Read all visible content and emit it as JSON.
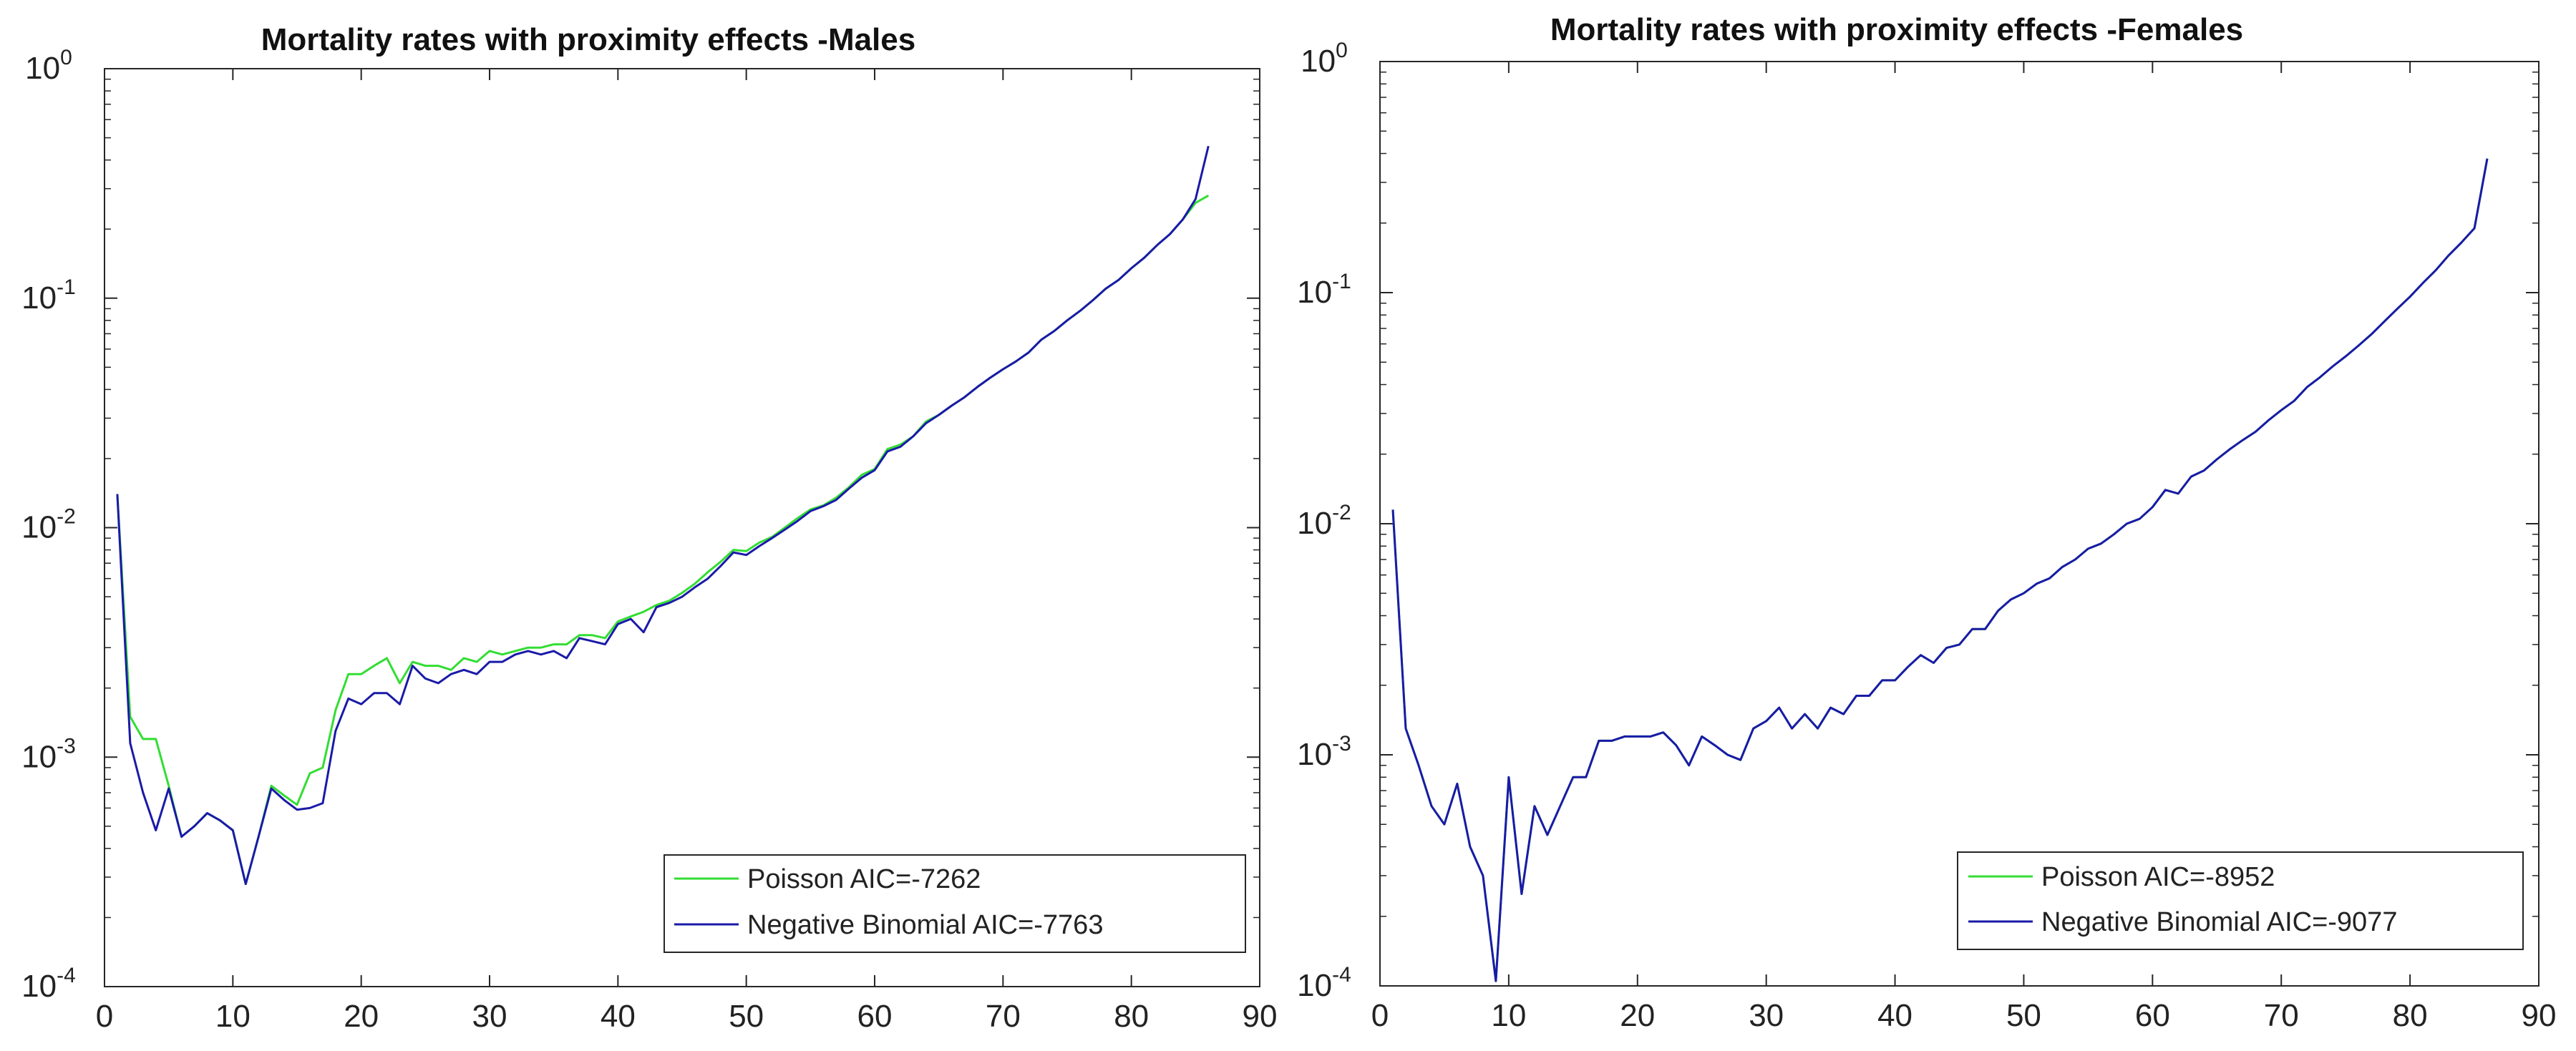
{
  "chart_data": [
    {
      "type": "line",
      "title": "Mortality rates with proximity effects -Males",
      "xlabel": "",
      "ylabel": "",
      "xlim": [
        0,
        90
      ],
      "ylim": [
        0.0001,
        1
      ],
      "yscale": "log",
      "x_ticks": [
        0,
        10,
        20,
        30,
        40,
        50,
        60,
        70,
        80,
        90
      ],
      "y_ticks": [
        {
          "base": "10",
          "exp": "-4",
          "value": 0.0001
        },
        {
          "base": "10",
          "exp": "-3",
          "value": 0.001
        },
        {
          "base": "10",
          "exp": "-2",
          "value": 0.01
        },
        {
          "base": "10",
          "exp": "-1",
          "value": 0.1
        },
        {
          "base": "10",
          "exp": "0",
          "value": 1
        }
      ],
      "legend_position": "bottom-right",
      "series": [
        {
          "name": "Poisson AIC=-7262",
          "color": "#33dd33",
          "x": [
            1,
            2,
            3,
            4,
            5,
            6,
            7,
            8,
            9,
            10,
            11,
            12,
            13,
            14,
            15,
            16,
            17,
            18,
            19,
            20,
            21,
            22,
            23,
            24,
            25,
            26,
            27,
            28,
            29,
            30,
            31,
            32,
            33,
            34,
            35,
            36,
            37,
            38,
            39,
            40,
            41,
            42,
            43,
            44,
            45,
            46,
            47,
            48,
            49,
            50,
            51,
            52,
            53,
            54,
            55,
            56,
            57,
            58,
            59,
            60,
            61,
            62,
            63,
            64,
            65,
            66,
            67,
            68,
            69,
            70,
            71,
            72,
            73,
            74,
            75,
            76,
            77,
            78,
            79,
            80,
            81,
            82,
            83,
            84,
            85,
            86
          ],
          "values": [
            0.014,
            0.0015,
            0.0012,
            0.0012,
            0.00075,
            0.00045,
            0.0005,
            0.00057,
            0.00053,
            0.00048,
            0.00028,
            0.00045,
            0.00075,
            0.00068,
            0.00062,
            0.00085,
            0.0009,
            0.0016,
            0.0023,
            0.0023,
            0.0025,
            0.0027,
            0.0021,
            0.0026,
            0.0025,
            0.0025,
            0.0024,
            0.0027,
            0.0026,
            0.0029,
            0.0028,
            0.0029,
            0.003,
            0.003,
            0.0031,
            0.0031,
            0.0034,
            0.0034,
            0.0033,
            0.0039,
            0.0041,
            0.0043,
            0.0046,
            0.0048,
            0.0052,
            0.0057,
            0.0064,
            0.0071,
            0.008,
            0.0079,
            0.0086,
            0.0091,
            0.01,
            0.011,
            0.012,
            0.0125,
            0.0135,
            0.015,
            0.017,
            0.018,
            0.022,
            0.023,
            0.025,
            0.029,
            0.031,
            0.034,
            0.037,
            0.041,
            0.045,
            0.049,
            0.053,
            0.058,
            0.066,
            0.072,
            0.08,
            0.088,
            0.098,
            0.11,
            0.12,
            0.135,
            0.15,
            0.17,
            0.19,
            0.22,
            0.26,
            0.28
          ]
        },
        {
          "name": "Negative Binomial AIC=-7763",
          "color": "#1a1aa8",
          "x": [
            1,
            2,
            3,
            4,
            5,
            6,
            7,
            8,
            9,
            10,
            11,
            12,
            13,
            14,
            15,
            16,
            17,
            18,
            19,
            20,
            21,
            22,
            23,
            24,
            25,
            26,
            27,
            28,
            29,
            30,
            31,
            32,
            33,
            34,
            35,
            36,
            37,
            38,
            39,
            40,
            41,
            42,
            43,
            44,
            45,
            46,
            47,
            48,
            49,
            50,
            51,
            52,
            53,
            54,
            55,
            56,
            57,
            58,
            59,
            60,
            61,
            62,
            63,
            64,
            65,
            66,
            67,
            68,
            69,
            70,
            71,
            72,
            73,
            74,
            75,
            76,
            77,
            78,
            79,
            80,
            81,
            82,
            83,
            84,
            85,
            86
          ],
          "values": [
            0.014,
            0.00115,
            0.0007,
            0.00048,
            0.00073,
            0.00045,
            0.0005,
            0.00057,
            0.00053,
            0.00048,
            0.00028,
            0.00045,
            0.00073,
            0.00065,
            0.00059,
            0.0006,
            0.00063,
            0.0013,
            0.0018,
            0.0017,
            0.0019,
            0.0019,
            0.0017,
            0.0025,
            0.0022,
            0.0021,
            0.0023,
            0.0024,
            0.0023,
            0.0026,
            0.0026,
            0.0028,
            0.0029,
            0.0028,
            0.0029,
            0.0027,
            0.0033,
            0.0032,
            0.0031,
            0.0038,
            0.004,
            0.0035,
            0.0045,
            0.0047,
            0.005,
            0.0055,
            0.006,
            0.0068,
            0.0078,
            0.0076,
            0.0083,
            0.009,
            0.0098,
            0.0107,
            0.0118,
            0.0124,
            0.0132,
            0.0148,
            0.0165,
            0.0178,
            0.0215,
            0.0225,
            0.025,
            0.0285,
            0.031,
            0.034,
            0.037,
            0.041,
            0.045,
            0.049,
            0.053,
            0.058,
            0.066,
            0.072,
            0.08,
            0.088,
            0.098,
            0.11,
            0.12,
            0.135,
            0.15,
            0.17,
            0.19,
            0.22,
            0.27,
            0.46
          ]
        }
      ]
    },
    {
      "type": "line",
      "title": "Mortality rates with proximity effects -Females",
      "xlabel": "",
      "ylabel": "",
      "xlim": [
        0,
        90
      ],
      "ylim": [
        0.0001,
        1
      ],
      "yscale": "log",
      "x_ticks": [
        0,
        10,
        20,
        30,
        40,
        50,
        60,
        70,
        80,
        90
      ],
      "y_ticks": [
        {
          "base": "10",
          "exp": "-4",
          "value": 0.0001
        },
        {
          "base": "10",
          "exp": "-3",
          "value": 0.001
        },
        {
          "base": "10",
          "exp": "-2",
          "value": 0.01
        },
        {
          "base": "10",
          "exp": "-1",
          "value": 0.1
        },
        {
          "base": "10",
          "exp": "0",
          "value": 1
        }
      ],
      "legend_position": "bottom-right",
      "series": [
        {
          "name": "Poisson AIC=-8952",
          "color": "#33dd33",
          "x": [
            1,
            2,
            3,
            4,
            5,
            6,
            7,
            8,
            9,
            10,
            11,
            12,
            13,
            14,
            15,
            16,
            17,
            18,
            19,
            20,
            21,
            22,
            23,
            24,
            25,
            26,
            27,
            28,
            29,
            30,
            31,
            32,
            33,
            34,
            35,
            36,
            37,
            38,
            39,
            40,
            41,
            42,
            43,
            44,
            45,
            46,
            47,
            48,
            49,
            50,
            51,
            52,
            53,
            54,
            55,
            56,
            57,
            58,
            59,
            60,
            61,
            62,
            63,
            64,
            65,
            66,
            67,
            68,
            69,
            70,
            71,
            72,
            73,
            74,
            75,
            76,
            77,
            78,
            79,
            80,
            81,
            82,
            83,
            84,
            85,
            86
          ],
          "values": [
            0.0115,
            0.0013,
            0.0009,
            0.0006,
            0.0005,
            0.00075,
            0.0004,
            0.0003,
            0.000105,
            0.0008,
            0.00025,
            0.0006,
            0.00045,
            0.0006,
            0.0008,
            0.0008,
            0.00115,
            0.00115,
            0.0012,
            0.0012,
            0.0012,
            0.00125,
            0.0011,
            0.0009,
            0.0012,
            0.0011,
            0.001,
            0.00095,
            0.0013,
            0.0014,
            0.0016,
            0.0013,
            0.0015,
            0.0013,
            0.0016,
            0.0015,
            0.0018,
            0.0018,
            0.0021,
            0.0021,
            0.0024,
            0.0027,
            0.0025,
            0.0029,
            0.003,
            0.0035,
            0.0035,
            0.0042,
            0.0047,
            0.005,
            0.0055,
            0.0058,
            0.0065,
            0.007,
            0.0078,
            0.0082,
            0.009,
            0.01,
            0.0105,
            0.0118,
            0.014,
            0.0135,
            0.016,
            0.017,
            0.019,
            0.021,
            0.023,
            0.025,
            0.028,
            0.031,
            0.034,
            0.039,
            0.043,
            0.048,
            0.053,
            0.059,
            0.066,
            0.075,
            0.085,
            0.096,
            0.11,
            0.125,
            0.145,
            0.165,
            0.19,
            0.38
          ]
        },
        {
          "name": "Negative Binomial AIC=-9077",
          "color": "#1a1aa8",
          "x": [
            1,
            2,
            3,
            4,
            5,
            6,
            7,
            8,
            9,
            10,
            11,
            12,
            13,
            14,
            15,
            16,
            17,
            18,
            19,
            20,
            21,
            22,
            23,
            24,
            25,
            26,
            27,
            28,
            29,
            30,
            31,
            32,
            33,
            34,
            35,
            36,
            37,
            38,
            39,
            40,
            41,
            42,
            43,
            44,
            45,
            46,
            47,
            48,
            49,
            50,
            51,
            52,
            53,
            54,
            55,
            56,
            57,
            58,
            59,
            60,
            61,
            62,
            63,
            64,
            65,
            66,
            67,
            68,
            69,
            70,
            71,
            72,
            73,
            74,
            75,
            76,
            77,
            78,
            79,
            80,
            81,
            82,
            83,
            84,
            85,
            86
          ],
          "values": [
            0.0115,
            0.0013,
            0.0009,
            0.0006,
            0.0005,
            0.00075,
            0.0004,
            0.0003,
            0.000105,
            0.0008,
            0.00025,
            0.0006,
            0.00045,
            0.0006,
            0.0008,
            0.0008,
            0.00115,
            0.00115,
            0.0012,
            0.0012,
            0.0012,
            0.00125,
            0.0011,
            0.0009,
            0.0012,
            0.0011,
            0.001,
            0.00095,
            0.0013,
            0.0014,
            0.0016,
            0.0013,
            0.0015,
            0.0013,
            0.0016,
            0.0015,
            0.0018,
            0.0018,
            0.0021,
            0.0021,
            0.0024,
            0.0027,
            0.0025,
            0.0029,
            0.003,
            0.0035,
            0.0035,
            0.0042,
            0.0047,
            0.005,
            0.0055,
            0.0058,
            0.0065,
            0.007,
            0.0078,
            0.0082,
            0.009,
            0.01,
            0.0105,
            0.0118,
            0.014,
            0.0135,
            0.016,
            0.017,
            0.019,
            0.021,
            0.023,
            0.025,
            0.028,
            0.031,
            0.034,
            0.039,
            0.043,
            0.048,
            0.053,
            0.059,
            0.066,
            0.075,
            0.085,
            0.096,
            0.11,
            0.125,
            0.145,
            0.165,
            0.19,
            0.38
          ]
        }
      ]
    }
  ]
}
